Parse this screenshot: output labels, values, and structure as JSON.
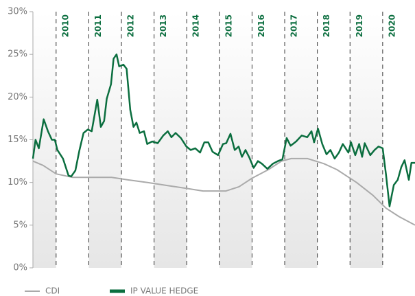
{
  "chart_data": {
    "type": "line",
    "xlim": [
      2009.29,
      2020.99
    ],
    "xticks": [
      {
        "value": 2010,
        "label": "2010"
      },
      {
        "value": 2011,
        "label": "2011"
      },
      {
        "value": 2012,
        "label": "2012"
      },
      {
        "value": 2013,
        "label": "2013"
      },
      {
        "value": 2014,
        "label": "2014"
      },
      {
        "value": 2015,
        "label": "2015"
      },
      {
        "value": 2016,
        "label": "2016"
      },
      {
        "value": 2017,
        "label": "2017"
      },
      {
        "value": 2018,
        "label": "2018"
      },
      {
        "value": 2019,
        "label": "2019"
      },
      {
        "value": 2020,
        "label": "2020"
      }
    ],
    "ylim": [
      0,
      30
    ],
    "yticks": [
      {
        "value": 0,
        "label": "0%"
      },
      {
        "value": 5,
        "label": "5%"
      },
      {
        "value": 10,
        "label": "10%"
      },
      {
        "value": 15,
        "label": "15%"
      },
      {
        "value": 20,
        "label": "20%"
      },
      {
        "value": 25,
        "label": "25%"
      },
      {
        "value": 30,
        "label": "30%"
      }
    ],
    "series": [
      {
        "name": "CDI",
        "color": "#aaaaaa",
        "x": [
          2009.29,
          2009.6,
          2010.0,
          2010.5,
          2011.0,
          2011.7,
          2012.2,
          2012.8,
          2013.3,
          2014.0,
          2014.5,
          2015.2,
          2015.6,
          2016.0,
          2016.5,
          2016.9,
          2017.2,
          2017.7,
          2018.2,
          2018.6,
          2019.2,
          2019.7,
          2020.1,
          2020.5,
          2020.99
        ],
        "values": [
          12.5,
          12,
          11,
          10.6,
          10.6,
          10.6,
          10.3,
          10,
          9.7,
          9.3,
          9,
          9,
          9.5,
          10.5,
          11.5,
          12.5,
          12.8,
          12.8,
          12.2,
          11.5,
          10,
          8.5,
          7,
          6,
          5
        ]
      },
      {
        "name": "IP VALUE HEDGE",
        "color": "#0b6e3f",
        "x": [
          2009.29,
          2009.37,
          2009.47,
          2009.62,
          2009.75,
          2009.87,
          2009.96,
          2010.04,
          2010.21,
          2010.38,
          2010.46,
          2010.59,
          2010.71,
          2010.84,
          2010.97,
          2011.09,
          2011.26,
          2011.37,
          2011.47,
          2011.55,
          2011.68,
          2011.76,
          2011.85,
          2011.93,
          2012.06,
          2012.16,
          2012.27,
          2012.37,
          2012.46,
          2012.56,
          2012.69,
          2012.79,
          2012.94,
          2013.11,
          2013.28,
          2013.42,
          2013.53,
          2013.66,
          2013.82,
          2013.99,
          2014.12,
          2014.26,
          2014.41,
          2014.54,
          2014.66,
          2014.79,
          2014.96,
          2015.11,
          2015.21,
          2015.34,
          2015.47,
          2015.59,
          2015.69,
          2015.8,
          2015.92,
          2016.05,
          2016.18,
          2016.3,
          2016.47,
          2016.64,
          2016.79,
          2016.93,
          2017.06,
          2017.18,
          2017.35,
          2017.52,
          2017.69,
          2017.82,
          2017.9,
          2018.02,
          2018.15,
          2018.28,
          2018.4,
          2018.53,
          2018.66,
          2018.78,
          2018.95,
          2019.03,
          2019.16,
          2019.28,
          2019.37,
          2019.45,
          2019.62,
          2019.75,
          2019.87,
          2020.0,
          2020.1,
          2020.21,
          2020.34,
          2020.46,
          2020.57,
          2020.67,
          2020.8,
          2020.88,
          2020.99
        ],
        "values": [
          12.8,
          15,
          14,
          17.4,
          16,
          15,
          15,
          13.8,
          12.8,
          10.8,
          10.7,
          11.4,
          13.7,
          15.8,
          16.2,
          16,
          19.7,
          16.5,
          17.2,
          19.8,
          21.5,
          24.5,
          25,
          23.6,
          23.8,
          23.3,
          18.5,
          16.5,
          17,
          15.8,
          16,
          14.5,
          14.8,
          14.6,
          15.5,
          16,
          15.3,
          15.8,
          15.2,
          14.2,
          13.8,
          14,
          13.5,
          14.7,
          14.7,
          13.6,
          13.2,
          14.5,
          14.6,
          15.7,
          13.8,
          14.2,
          13,
          13.8,
          12.9,
          11.7,
          12.5,
          12.2,
          11.6,
          12.2,
          12.5,
          12.7,
          15.2,
          14.3,
          14.8,
          15.5,
          15.3,
          16,
          14.7,
          16.3,
          14.5,
          13.3,
          13.8,
          12.8,
          13.5,
          14.5,
          13.5,
          14.7,
          13.2,
          14.5,
          13,
          14.6,
          13.2,
          13.8,
          14.2,
          14,
          11,
          7.2,
          9.7,
          10.3,
          11.8,
          12.6,
          10.3,
          12.3,
          12.3
        ]
      }
    ]
  }
}
